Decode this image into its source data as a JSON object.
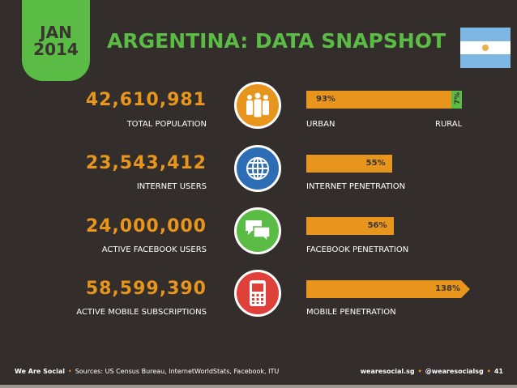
{
  "header": {
    "month": "JAN",
    "year": "2014",
    "title": "ARGENTINA: DATA SNAPSHOT",
    "flag_icon": "argentina-flag"
  },
  "colors": {
    "background": "#332e2b",
    "green": "#5abb45",
    "orange": "#e8951e",
    "blue": "#2d6db5",
    "red": "#e0403a"
  },
  "rows": [
    {
      "value": "42,610,981",
      "label": "TOTAL POPULATION",
      "icon": "people-icon",
      "bar_label_left": "URBAN",
      "bar_label_right": "RURAL",
      "pct_text": "93%",
      "pct_text2": "7%"
    },
    {
      "value": "23,543,412",
      "label": "INTERNET USERS",
      "icon": "globe-icon",
      "bar_label_left": "INTERNET PENETRATION",
      "pct_text": "55%"
    },
    {
      "value": "24,000,000",
      "label": "ACTIVE FACEBOOK USERS",
      "icon": "speech-bubbles-icon",
      "bar_label_left": "FACEBOOK PENETRATION",
      "pct_text": "56%"
    },
    {
      "value": "58,599,390",
      "label": "ACTIVE MOBILE SUBSCRIPTIONS",
      "icon": "mobile-phone-icon",
      "bar_label_left": "MOBILE PENETRATION",
      "pct_text": "138%"
    }
  ],
  "chart_data": {
    "type": "bar",
    "categories": [
      "Urban / Rural",
      "Internet penetration",
      "Facebook penetration",
      "Mobile penetration"
    ],
    "series": [
      {
        "values": [
          93,
          55,
          56,
          138
        ]
      }
    ],
    "secondary": {
      "category": "Rural",
      "value": 7
    },
    "unit": "%"
  },
  "footer": {
    "brand": "We Are Social",
    "sources": "Sources: US Census Bureau, InternetWorldStats, Facebook, ITU",
    "site": "wearesocial.sg",
    "handle": "@wearesocialsg",
    "page": "41"
  }
}
